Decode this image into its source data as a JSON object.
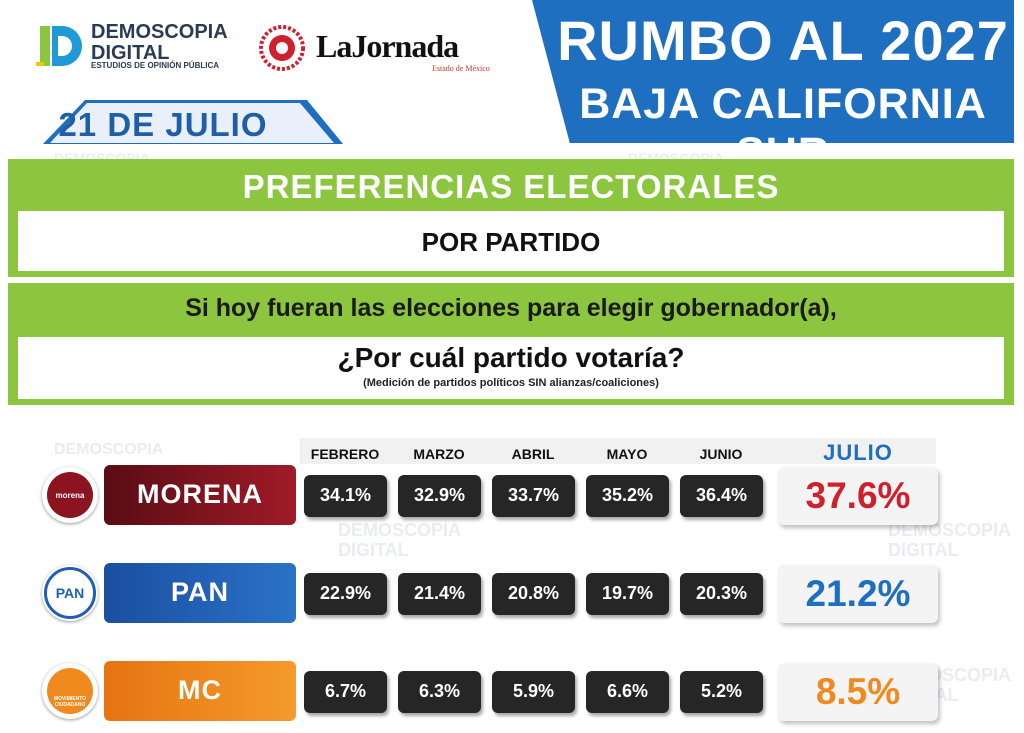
{
  "header": {
    "brand_name": "DEMOSCOPIA DIGITAL",
    "brand_line1": "DEMOSCOPIA",
    "brand_line2": "DIGITAL",
    "brand_subtitle": "ESTUDIOS DE OPINIÓN PÚBLICA",
    "partner_name": "LaJornada",
    "partner_subtitle": "Estado de México",
    "date": "21 DE JULIO",
    "title": "RUMBO AL 2027",
    "subtitle": "BAJA CALIFORNIA SUR"
  },
  "sections": {
    "heading": "PREFERENCIAS ELECTORALES",
    "subheading": "POR PARTIDO",
    "question_line1": "Si hoy fueran las elecciones para elegir gobernador(a),",
    "question_line2": "¿Por cuál partido votaría?",
    "note": "(Medición de partidos políticos SIN alianzas/coaliciones)"
  },
  "party_icons": {
    "morena": "morena",
    "pan": "PAN",
    "mc": "MOVIMIENTO CIUDADANO"
  },
  "colors": {
    "blue": "#1f6fc1",
    "green": "#8cc63f",
    "morena": "#8b1420",
    "pan": "#1f5fb8",
    "mc": "#f08a1e"
  },
  "chart_data": {
    "type": "table",
    "title": "PREFERENCIAS ELECTORALES",
    "subtitle": "POR PARTIDO",
    "categories": [
      "FEBRERO",
      "MARZO",
      "ABRIL",
      "MAYO",
      "JUNIO",
      "JULIO"
    ],
    "series": [
      {
        "name": "MORENA",
        "values": [
          34.1,
          32.9,
          33.7,
          35.2,
          36.4,
          37.6
        ],
        "labels": [
          "34.1%",
          "32.9%",
          "33.7%",
          "35.2%",
          "36.4%",
          "37.6%"
        ],
        "color": "#d0202c"
      },
      {
        "name": "PAN",
        "values": [
          22.9,
          21.4,
          20.8,
          19.7,
          20.3,
          21.2
        ],
        "labels": [
          "22.9%",
          "21.4%",
          "20.8%",
          "19.7%",
          "20.3%",
          "21.2%"
        ],
        "color": "#1f6fc1"
      },
      {
        "name": "MC",
        "values": [
          6.7,
          6.3,
          5.9,
          6.6,
          5.2,
          8.5
        ],
        "labels": [
          "6.7%",
          "6.3%",
          "5.9%",
          "6.6%",
          "5.2%",
          "8.5%"
        ],
        "color": "#f08a1e"
      }
    ]
  }
}
